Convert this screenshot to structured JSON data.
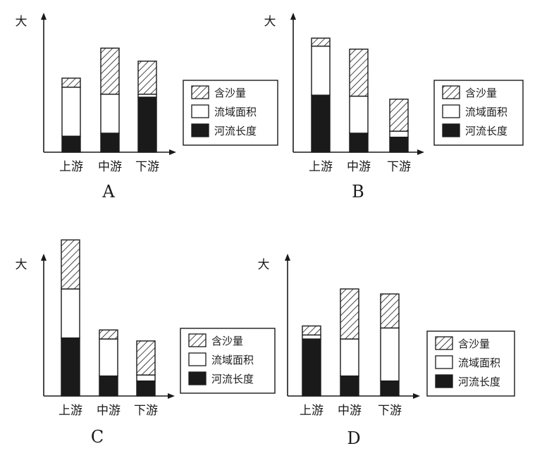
{
  "chart_data": [
    {
      "type": "bar",
      "stacked": true,
      "panel_label": "A",
      "ylabel": "大",
      "categories": [
        "上游",
        "中游",
        "下游"
      ],
      "series": [
        {
          "name": "河流长度",
          "pattern": "solid-black",
          "values": [
            1.6,
            1.9,
            5.5
          ]
        },
        {
          "name": "流域面积",
          "pattern": "white",
          "values": [
            4.9,
            3.9,
            0.3
          ]
        },
        {
          "name": "含沙量",
          "pattern": "hatched",
          "values": [
            0.9,
            4.6,
            3.3
          ]
        }
      ],
      "legend": {
        "position": "right",
        "order": [
          "含沙量",
          "流域面积",
          "河流长度"
        ]
      }
    },
    {
      "type": "bar",
      "stacked": true,
      "panel_label": "B",
      "ylabel": "大",
      "categories": [
        "上游",
        "中游",
        "下游"
      ],
      "series": [
        {
          "name": "河流长度",
          "pattern": "solid-black",
          "values": [
            5.7,
            1.9,
            1.5
          ]
        },
        {
          "name": "流域面积",
          "pattern": "white",
          "values": [
            4.9,
            3.7,
            0.6
          ]
        },
        {
          "name": "含沙量",
          "pattern": "hatched",
          "values": [
            0.8,
            4.7,
            3.2
          ]
        }
      ],
      "legend": {
        "position": "right",
        "order": [
          "含沙量",
          "流域面积",
          "河流长度"
        ]
      }
    },
    {
      "type": "bar",
      "stacked": true,
      "panel_label": "C",
      "ylabel": "大",
      "categories": [
        "上游",
        "中游",
        "下游"
      ],
      "series": [
        {
          "name": "河流长度",
          "pattern": "solid-black",
          "values": [
            5.8,
            2.0,
            1.5
          ]
        },
        {
          "name": "流域面积",
          "pattern": "white",
          "values": [
            4.9,
            3.7,
            0.6
          ]
        },
        {
          "name": "含沙量",
          "pattern": "hatched",
          "values": [
            4.9,
            0.9,
            3.4
          ]
        }
      ],
      "legend": {
        "position": "right",
        "order": [
          "含沙量",
          "流域面积",
          "河流长度"
        ]
      }
    },
    {
      "type": "bar",
      "stacked": true,
      "panel_label": "D",
      "ylabel": "大",
      "categories": [
        "上游",
        "中游",
        "下游"
      ],
      "series": [
        {
          "name": "河流长度",
          "pattern": "solid-black",
          "values": [
            5.7,
            2.0,
            1.5
          ]
        },
        {
          "name": "流域面积",
          "pattern": "white",
          "values": [
            0.4,
            3.7,
            5.3
          ]
        },
        {
          "name": "含沙量",
          "pattern": "hatched",
          "values": [
            0.9,
            5.0,
            3.4
          ]
        }
      ],
      "legend": {
        "position": "right",
        "order": [
          "含沙量",
          "流域面积",
          "河流长度"
        ]
      }
    }
  ],
  "colors": {
    "ink": "#1a1a1a",
    "background": "#ffffff"
  }
}
